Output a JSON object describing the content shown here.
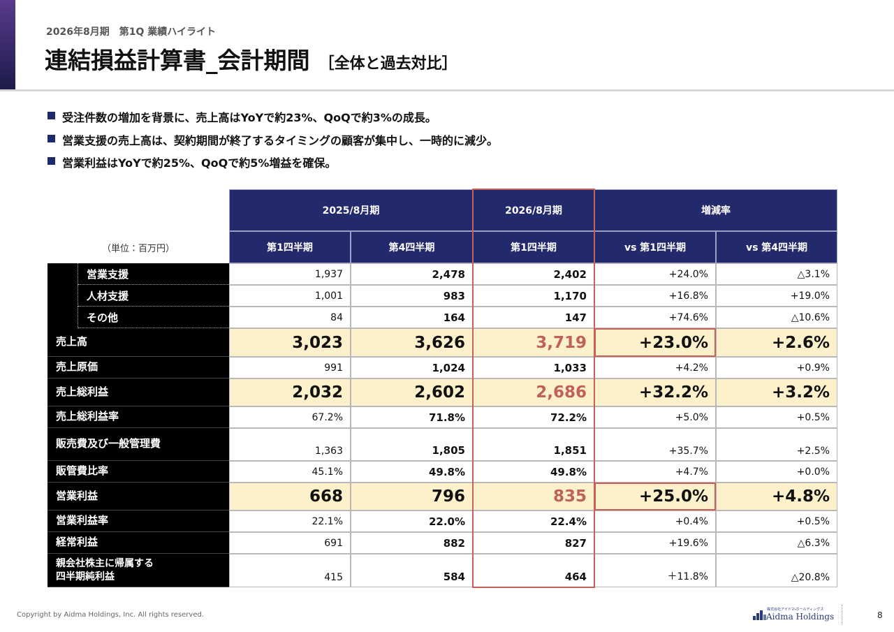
{
  "header": {
    "subtitle": "2026年8月期　第1Q 業績ハイライト",
    "title": "連結損益計算書_会計期間",
    "title_suffix": "［全体と過去対比］"
  },
  "bullets": [
    "受注件数の増加を背景に、売上高はYoYで約23%、QoQで約3%の成長。",
    "営業支援の売上高は、契約期間が終了するタイミングの顧客が集中し、一時的に減少。",
    "営業利益はYoYで約25%、QoQで約5%増益を確保。"
  ],
  "table": {
    "unit": "（単位：百万円）",
    "groups": [
      "2025/8月期",
      "2026/8月期",
      "増減率"
    ],
    "columns": [
      "第1四半期",
      "第4四半期",
      "第1四半期",
      "vs 第1四半期",
      "vs 第4四半期"
    ],
    "rows": [
      {
        "label": "営業支援",
        "indent": true,
        "values": [
          "1,937",
          "2,478",
          "2,402",
          "+24.0%",
          "△3.1%"
        ]
      },
      {
        "label": "人材支援",
        "indent": true,
        "values": [
          "1,001",
          "983",
          "1,170",
          "+16.8%",
          "+19.0%"
        ]
      },
      {
        "label": "その他",
        "indent": true,
        "values": [
          "84",
          "164",
          "147",
          "+74.6%",
          "△10.6%"
        ]
      },
      {
        "label": "売上高",
        "highlight": true,
        "values": [
          "3,023",
          "3,626",
          "3,719",
          "+23.0%",
          "+2.6%"
        ]
      },
      {
        "label": "売上原価",
        "values": [
          "991",
          "1,024",
          "1,033",
          "+4.2%",
          "+0.9%"
        ]
      },
      {
        "label": "売上総利益",
        "highlight": true,
        "values": [
          "2,032",
          "2,602",
          "2,686",
          "+32.2%",
          "+3.2%"
        ]
      },
      {
        "label": "売上総利益率",
        "values": [
          "67.2%",
          "71.8%",
          "72.2%",
          "+5.0%",
          "+0.5%"
        ]
      },
      {
        "label": "販売費及び一般管理費",
        "values": [
          "1,363",
          "1,805",
          "1,851",
          "+35.7%",
          "+2.5%"
        ]
      },
      {
        "label": "販管費比率",
        "values": [
          "45.1%",
          "49.8%",
          "49.8%",
          "+4.7%",
          "+0.0%"
        ]
      },
      {
        "label": "営業利益",
        "highlight": true,
        "values": [
          "668",
          "796",
          "835",
          "+25.0%",
          "+4.8%"
        ]
      },
      {
        "label": "営業利益率",
        "values": [
          "22.1%",
          "22.0%",
          "22.4%",
          "+0.4%",
          "+0.5%"
        ]
      },
      {
        "label": "経常利益",
        "values": [
          "691",
          "882",
          "827",
          "+19.6%",
          "△6.3%"
        ]
      },
      {
        "label": "親会社株主に帰属する\n四半期純利益",
        "values": [
          "415",
          "584",
          "464",
          "＋11.8%",
          "△20.8%"
        ]
      }
    ]
  },
  "footer": {
    "copyright": "Copyright by Aidma Holdings, Inc. All rights reserved.",
    "logo_small": "株式会社アイドマ・ホールディングス",
    "logo": "Aidma Holdings",
    "page": "8"
  }
}
